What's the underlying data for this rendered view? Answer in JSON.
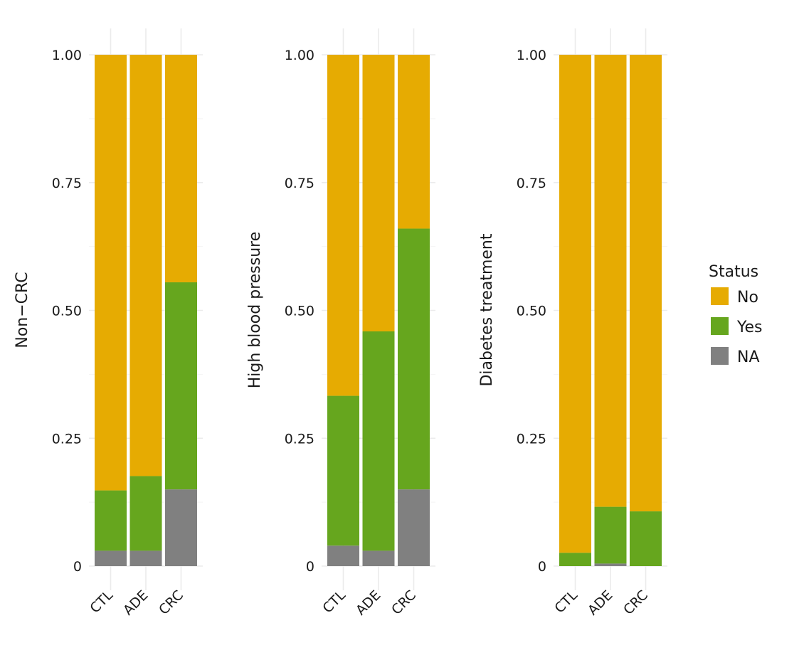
{
  "chart_data": [
    {
      "type": "bar",
      "stacked": true,
      "ylabel": "Non−CRC",
      "xlabel": "",
      "categories": [
        "CTL",
        "ADE",
        "CRC"
      ],
      "ylim": [
        0,
        1
      ],
      "yticks": [
        "0",
        "0.25",
        "0.50",
        "0.75",
        "1.00"
      ],
      "grid": true,
      "series": [
        {
          "name": "NA",
          "values": [
            0.03,
            0.03,
            0.15
          ]
        },
        {
          "name": "Yes",
          "values": [
            0.118,
            0.146,
            0.405
          ]
        },
        {
          "name": "No",
          "values": [
            0.852,
            0.824,
            0.445
          ]
        }
      ]
    },
    {
      "type": "bar",
      "stacked": true,
      "ylabel": "High blood pressure",
      "xlabel": "",
      "categories": [
        "CTL",
        "ADE",
        "CRC"
      ],
      "ylim": [
        0,
        1
      ],
      "yticks": [
        "0",
        "0.25",
        "0.50",
        "0.75",
        "1.00"
      ],
      "grid": true,
      "series": [
        {
          "name": "NA",
          "values": [
            0.04,
            0.03,
            0.15
          ]
        },
        {
          "name": "Yes",
          "values": [
            0.293,
            0.429,
            0.51
          ]
        },
        {
          "name": "No",
          "values": [
            0.667,
            0.541,
            0.34
          ]
        }
      ]
    },
    {
      "type": "bar",
      "stacked": true,
      "ylabel": "Diabetes treatment",
      "xlabel": "",
      "categories": [
        "CTL",
        "ADE",
        "CRC"
      ],
      "ylim": [
        0,
        1
      ],
      "yticks": [
        "0",
        "0.25",
        "0.50",
        "0.75",
        "1.00"
      ],
      "grid": true,
      "series": [
        {
          "name": "NA",
          "values": [
            0.0,
            0.005,
            0.0
          ]
        },
        {
          "name": "Yes",
          "values": [
            0.026,
            0.111,
            0.107
          ]
        },
        {
          "name": "No",
          "values": [
            0.974,
            0.884,
            0.893
          ]
        }
      ]
    }
  ],
  "legend": {
    "title": "Status",
    "position": "right",
    "items": [
      {
        "label": "No",
        "color": "#E6AB02"
      },
      {
        "label": "Yes",
        "color": "#66A61E"
      },
      {
        "label": "NA",
        "color": "#808080"
      }
    ]
  },
  "colors": {
    "No": "#E6AB02",
    "Yes": "#66A61E",
    "NA": "#808080"
  }
}
